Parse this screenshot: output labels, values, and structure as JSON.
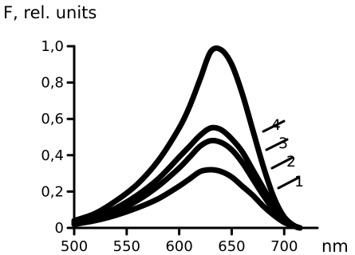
{
  "chart_data": {
    "type": "line",
    "title": "",
    "ylabel": "F, rel. units",
    "xlabel": "nm",
    "xlim": [
      500,
      715
    ],
    "ylim": [
      0,
      1.0
    ],
    "grid": false,
    "x_ticks": [
      500,
      550,
      600,
      650,
      700
    ],
    "x_tick_labels": [
      "500",
      "550",
      "600",
      "650",
      "700"
    ],
    "y_ticks": [
      0,
      0.2,
      0.4,
      0.6,
      0.8,
      1.0
    ],
    "y_tick_labels": [
      "0",
      "0,2",
      "0,4",
      "0,6",
      "0,8",
      "1,0"
    ],
    "x": [
      500,
      520,
      540,
      560,
      580,
      600,
      610,
      620,
      630,
      640,
      650,
      660,
      670,
      680,
      690,
      700,
      710,
      715
    ],
    "series": [
      {
        "label": "1",
        "values": [
          0.02,
          0.04,
          0.07,
          0.11,
          0.16,
          0.23,
          0.27,
          0.31,
          0.32,
          0.31,
          0.28,
          0.23,
          0.18,
          0.12,
          0.07,
          0.03,
          0.01,
          0.0
        ]
      },
      {
        "label": "2",
        "values": [
          0.02,
          0.05,
          0.09,
          0.15,
          0.23,
          0.33,
          0.39,
          0.45,
          0.48,
          0.47,
          0.43,
          0.36,
          0.27,
          0.18,
          0.1,
          0.05,
          0.01,
          0.0
        ]
      },
      {
        "label": "3",
        "values": [
          0.03,
          0.06,
          0.11,
          0.18,
          0.27,
          0.39,
          0.45,
          0.51,
          0.55,
          0.54,
          0.49,
          0.42,
          0.32,
          0.22,
          0.12,
          0.05,
          0.01,
          0.0
        ]
      },
      {
        "label": "4",
        "values": [
          0.04,
          0.08,
          0.15,
          0.24,
          0.37,
          0.55,
          0.67,
          0.82,
          0.97,
          0.98,
          0.9,
          0.74,
          0.54,
          0.34,
          0.17,
          0.06,
          0.01,
          0.0
        ]
      }
    ]
  }
}
